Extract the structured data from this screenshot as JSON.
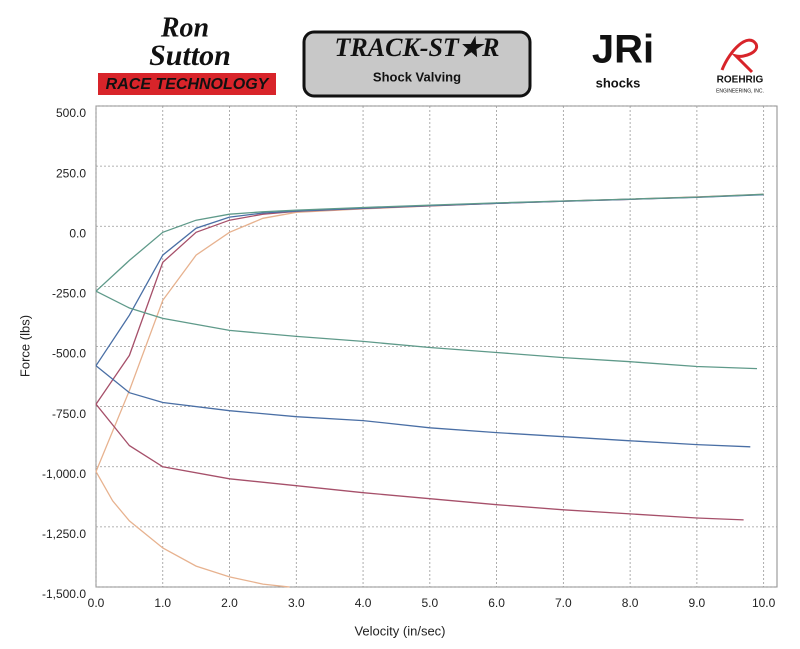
{
  "logos": {
    "ron_sutton": [
      "Ron",
      "Sutton"
    ],
    "race_technology": "RACE TECHNOLOGY",
    "track_star": "TRACK-ST★R",
    "shock_valving": "Shock Valving",
    "jri": "JRi",
    "jri_shocks": "shocks",
    "roehrig": "ROEHRIG",
    "roehrig_sub": "ENGINEERING, INC."
  },
  "chart_data": {
    "type": "line",
    "x_label": "Velocity (in/sec)",
    "y_label": "Force (lbs)",
    "xlim": [
      0,
      10.2
    ],
    "ylim": [
      -1500,
      500
    ],
    "xticks": [
      {
        "value": 0,
        "label": "0.0"
      },
      {
        "value": 1,
        "label": "1.0"
      },
      {
        "value": 2,
        "label": "2.0"
      },
      {
        "value": 3,
        "label": "3.0"
      },
      {
        "value": 4,
        "label": "4.0"
      },
      {
        "value": 5,
        "label": "5.0"
      },
      {
        "value": 6,
        "label": "6.0"
      },
      {
        "value": 7,
        "label": "7.0"
      },
      {
        "value": 8,
        "label": "8.0"
      },
      {
        "value": 9,
        "label": "9.0"
      },
      {
        "value": 10,
        "label": "10.0"
      }
    ],
    "yticks": [
      {
        "value": 500,
        "label": "500.0"
      },
      {
        "value": 250,
        "label": "250.0"
      },
      {
        "value": 0,
        "label": "0.0"
      },
      {
        "value": -250,
        "label": "-250.0"
      },
      {
        "value": -500,
        "label": "-500.0"
      },
      {
        "value": -750,
        "label": "-750.0"
      },
      {
        "value": -1000,
        "label": "-1,000.0"
      },
      {
        "value": -1250,
        "label": "-1,250.0"
      },
      {
        "value": -1500,
        "label": "-1,500.0"
      }
    ],
    "grid": true,
    "series": [
      {
        "color": "#e7b28f",
        "x": [
          0,
          0.5,
          1,
          1.5,
          2,
          2.5,
          3,
          4,
          5,
          6,
          7,
          8,
          9,
          10
        ],
        "values": [
          -1020,
          -683,
          -308,
          -120,
          -25,
          33,
          58,
          72,
          84,
          95,
          105,
          113,
          122,
          133
        ]
      },
      {
        "color": "#a6506a",
        "x": [
          0,
          0.5,
          1,
          1.5,
          2,
          2.5,
          3,
          4,
          5,
          6,
          7,
          8,
          9,
          10
        ],
        "values": [
          -740,
          -537,
          -150,
          -25,
          25,
          50,
          62,
          74,
          85,
          95,
          104,
          112,
          121,
          132
        ]
      },
      {
        "color": "#4a6fa5",
        "x": [
          0,
          0.5,
          1,
          1.5,
          2,
          2.5,
          3,
          4,
          5,
          6,
          7,
          8,
          9,
          10
        ],
        "values": [
          -580,
          -370,
          -120,
          -8,
          38,
          55,
          63,
          75,
          86,
          95,
          104,
          112,
          120,
          131
        ]
      },
      {
        "color": "#5f9a8a",
        "x": [
          0,
          0.5,
          1,
          1.5,
          2,
          2.5,
          3,
          4,
          5,
          6,
          7,
          8,
          9,
          10
        ],
        "values": [
          -270,
          -142,
          -25,
          25,
          50,
          60,
          67,
          78,
          88,
          97,
          105,
          113,
          121,
          133
        ]
      },
      {
        "color": "#5f9a8a",
        "x": [
          0,
          0.5,
          1,
          2,
          3,
          4,
          5,
          6,
          7,
          8,
          9,
          9.9
        ],
        "values": [
          -270,
          -340,
          -383,
          -433,
          -458,
          -479,
          -504,
          -525,
          -546,
          -563,
          -583,
          -592
        ]
      },
      {
        "color": "#4a6fa5",
        "x": [
          0,
          0.5,
          1,
          2,
          3,
          4,
          5,
          6,
          7,
          8,
          9,
          9.8
        ],
        "values": [
          -580,
          -692,
          -733,
          -767,
          -792,
          -808,
          -838,
          -858,
          -875,
          -892,
          -908,
          -917
        ]
      },
      {
        "color": "#a6506a",
        "x": [
          0,
          0.5,
          1,
          2,
          3,
          4,
          5,
          6,
          7,
          8,
          9,
          9.7
        ],
        "values": [
          -740,
          -912,
          -1000,
          -1050,
          -1079,
          -1108,
          -1133,
          -1158,
          -1179,
          -1196,
          -1213,
          -1221
        ]
      },
      {
        "color": "#e7b28f",
        "x": [
          0,
          0.25,
          0.5,
          1,
          1.5,
          2,
          2.5,
          2.9
        ],
        "values": [
          -1020,
          -1142,
          -1225,
          -1338,
          -1413,
          -1458,
          -1488,
          -1500
        ]
      }
    ]
  }
}
